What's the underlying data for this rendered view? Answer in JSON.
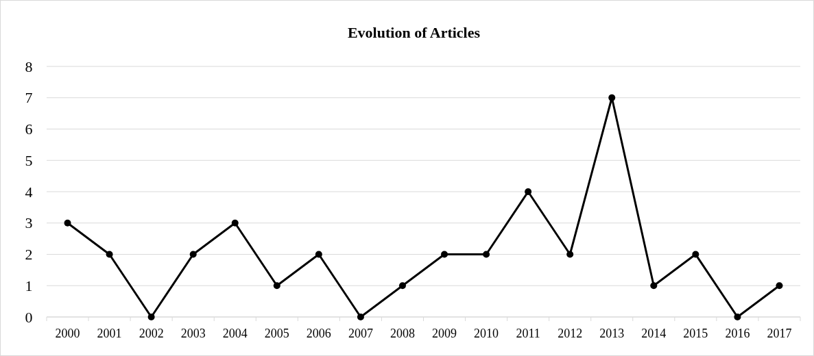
{
  "chart_data": {
    "type": "line",
    "title": "Evolution of Articles",
    "categories": [
      "2000",
      "2001",
      "2002",
      "2003",
      "2004",
      "2005",
      "2006",
      "2007",
      "2008",
      "2009",
      "2010",
      "2011",
      "2012",
      "2013",
      "2014",
      "2015",
      "2016",
      "2017"
    ],
    "series": [
      {
        "color": "#000000",
        "values": [
          3,
          2,
          0,
          2,
          3,
          1,
          2,
          0,
          1,
          2,
          2,
          4,
          2,
          7,
          1,
          2,
          0,
          1
        ]
      }
    ],
    "ylim": [
      0,
      8
    ],
    "yticks": [
      0,
      1,
      2,
      3,
      4,
      5,
      6,
      7,
      8
    ],
    "grid": "y",
    "marker": "circle",
    "line_style": "solid"
  }
}
